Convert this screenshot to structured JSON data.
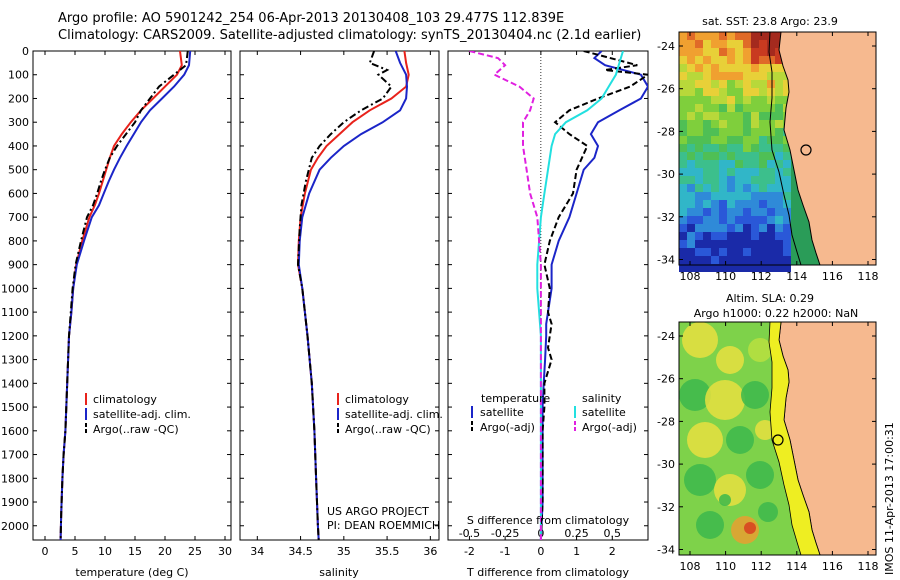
{
  "titles": {
    "line1": "Argo profile: AO 5901242_254 06-Apr-2013 20130408_103 29.477S 112.839E",
    "line2": "Climatology: CARS2009. Satellite-adjusted climatology: synTS_20130404.nc (2.1d earlier)"
  },
  "colors": {
    "climatology": "#e8221b",
    "satellite": "#1b25c8",
    "argo": "#000000",
    "sal_satellite": "#22e0e0",
    "sal_argo": "#e020e0",
    "land": "#f6b98f"
  },
  "chart_data": [
    {
      "type": "line",
      "id": "temperature",
      "xlabel": "temperature (deg C)",
      "xlim": [
        -2,
        31
      ],
      "ylim": [
        0,
        2060
      ],
      "yticks": [
        0,
        100,
        200,
        300,
        400,
        500,
        600,
        700,
        800,
        900,
        1000,
        1100,
        1200,
        1300,
        1400,
        1500,
        1600,
        1700,
        1800,
        1900,
        2000
      ],
      "xticks": [
        0,
        5,
        10,
        15,
        20,
        25,
        30
      ],
      "legend": [
        "climatology",
        "satellite-adj. clim.",
        "Argo(..raw -QC)"
      ],
      "series": [
        {
          "name": "climatology",
          "style": "solid",
          "color_key": "climatology",
          "x": [
            22.5,
            22.8,
            22.0,
            20.0,
            18.0,
            16.0,
            14.3,
            12.8,
            11.5,
            10.8,
            10.2,
            9.6,
            9.0,
            8.3,
            7.4,
            6.2,
            5.2,
            4.7,
            4.4,
            4.0,
            3.7,
            3.4,
            3.1,
            2.9,
            2.7,
            2.6
          ],
          "y": [
            0,
            60,
            100,
            150,
            200,
            250,
            300,
            350,
            400,
            450,
            500,
            550,
            600,
            650,
            700,
            800,
            900,
            1000,
            1100,
            1200,
            1400,
            1600,
            1700,
            1800,
            1950,
            2060
          ]
        },
        {
          "name": "satellite-adj. clim.",
          "style": "solid",
          "color_key": "satellite",
          "x": [
            24.2,
            24.0,
            23.2,
            21.5,
            19.5,
            17.5,
            16.0,
            14.8,
            13.6,
            12.5,
            11.5,
            10.6,
            9.8,
            9.0,
            7.8,
            6.5,
            5.3,
            4.7,
            4.4,
            4.0,
            3.7,
            3.4,
            3.1,
            2.9,
            2.7,
            2.6
          ],
          "y": [
            0,
            60,
            100,
            150,
            200,
            250,
            300,
            350,
            400,
            450,
            500,
            550,
            600,
            650,
            700,
            800,
            900,
            1000,
            1100,
            1200,
            1400,
            1600,
            1700,
            1800,
            1950,
            2060
          ]
        },
        {
          "name": "Argo(..raw -QC)",
          "style": "dashdot",
          "color_key": "argo",
          "x": [
            23.8,
            23.5,
            21.5,
            19.0,
            17.5,
            16.0,
            15.0,
            13.5,
            12.0,
            10.8,
            10.0,
            9.3,
            8.7,
            8.0,
            7.0,
            6.0,
            5.1,
            4.6,
            4.3,
            4.0,
            3.7,
            3.4,
            3.1,
            2.9,
            2.7,
            2.6
          ],
          "y": [
            0,
            60,
            100,
            150,
            200,
            250,
            300,
            350,
            400,
            450,
            500,
            550,
            600,
            650,
            700,
            800,
            900,
            1000,
            1100,
            1200,
            1400,
            1600,
            1700,
            1800,
            1950,
            2060
          ]
        }
      ]
    },
    {
      "type": "line",
      "id": "salinity",
      "xlabel": "salinity",
      "xlim": [
        33.8,
        36.1
      ],
      "ylim": [
        0,
        2060
      ],
      "xticks": [
        34,
        34.5,
        35,
        35.5,
        36
      ],
      "legend": [
        "climatology",
        "satellite-adj. clim.",
        "Argo(..raw -QC)"
      ],
      "annotation": [
        "US ARGO PROJECT",
        "PI: DEAN ROEMMICH"
      ],
      "series": [
        {
          "name": "climatology",
          "style": "solid",
          "color_key": "climatology",
          "x": [
            35.7,
            35.72,
            35.75,
            35.72,
            35.55,
            35.3,
            35.1,
            34.95,
            34.8,
            34.7,
            34.62,
            34.55,
            34.5,
            34.48,
            34.47,
            34.52,
            34.58,
            34.63,
            34.66,
            34.68,
            34.7,
            34.71
          ],
          "y": [
            0,
            50,
            100,
            150,
            200,
            250,
            300,
            350,
            400,
            450,
            500,
            600,
            700,
            800,
            900,
            1000,
            1200,
            1400,
            1600,
            1800,
            2000,
            2060
          ]
        },
        {
          "name": "satellite-adj. clim.",
          "style": "solid",
          "color_key": "satellite",
          "x": [
            35.6,
            35.65,
            35.72,
            35.73,
            35.72,
            35.65,
            35.45,
            35.2,
            35.0,
            34.85,
            34.72,
            34.6,
            34.52,
            34.49,
            34.48,
            34.52,
            34.58,
            34.63,
            34.66,
            34.68,
            34.7,
            34.71
          ],
          "y": [
            0,
            50,
            100,
            150,
            200,
            250,
            300,
            350,
            400,
            450,
            500,
            600,
            700,
            800,
            900,
            1000,
            1200,
            1400,
            1600,
            1800,
            2000,
            2060
          ]
        },
        {
          "name": "Argo(..raw -QC)",
          "style": "dashdot",
          "color_key": "argo",
          "x": [
            35.35,
            35.3,
            35.5,
            35.4,
            35.55,
            35.45,
            35.2,
            35.0,
            34.85,
            34.72,
            34.63,
            34.56,
            34.51,
            34.49,
            34.47,
            34.52,
            34.58,
            34.63,
            34.66,
            34.68,
            34.7,
            34.71
          ],
          "y": [
            0,
            50,
            80,
            100,
            150,
            200,
            250,
            300,
            350,
            400,
            450,
            550,
            650,
            750,
            900,
            1000,
            1200,
            1400,
            1600,
            1800,
            2000,
            2060
          ]
        }
      ]
    },
    {
      "type": "line",
      "id": "differences",
      "xlabel": "T difference from climatology",
      "xlabel_top": "S difference from climatology",
      "xlim": [
        -2.6,
        3.0
      ],
      "xticks_T": [
        -2,
        -1,
        0,
        1,
        2
      ],
      "xticks_S": [
        "-0.5",
        "-0.25",
        "0",
        "0.25",
        "0.5"
      ],
      "xticks_S_pos": [
        -2,
        -1,
        0,
        1,
        2
      ],
      "ylim": [
        0,
        2060
      ],
      "legend_headers": [
        "temperature",
        "salinity"
      ],
      "legend": [
        "satellite",
        "Argo(-adj)",
        "satellite",
        "Argo(-adj)"
      ],
      "series": [
        {
          "name": "satellite",
          "group": "temperature",
          "style": "solid",
          "color_key": "satellite",
          "x": [
            1.7,
            1.5,
            1.8,
            2.8,
            3.0,
            2.8,
            2.2,
            1.6,
            1.4,
            1.6,
            1.5,
            1.2,
            1.0,
            0.8,
            0.5,
            0.3,
            0.3,
            0.2,
            0.15,
            0.15,
            0.12,
            0.08,
            0.05,
            0.05,
            0.05,
            0.0
          ],
          "y": [
            0,
            30,
            60,
            100,
            150,
            200,
            250,
            300,
            350,
            400,
            450,
            500,
            600,
            700,
            800,
            900,
            1000,
            1100,
            1150,
            1200,
            1300,
            1400,
            1500,
            1600,
            1900,
            2060
          ]
        },
        {
          "name": "Argo(-adj)",
          "group": "temperature",
          "style": "dashed",
          "color_key": "argo",
          "x": [
            1.2,
            2.7,
            1.8,
            3.0,
            2.5,
            1.6,
            0.8,
            0.4,
            0.8,
            1.3,
            1.0,
            0.9,
            0.5,
            0.25,
            0.1,
            0.25,
            0.2,
            0.3,
            0.2,
            0.3,
            0.1,
            0.1,
            0.05,
            0.05,
            0.0
          ],
          "y": [
            0,
            60,
            80,
            100,
            150,
            200,
            250,
            300,
            350,
            400,
            500,
            600,
            700,
            800,
            900,
            1000,
            1100,
            1150,
            1250,
            1300,
            1400,
            1500,
            1600,
            1900,
            2060
          ]
        },
        {
          "name": "satellite",
          "group": "salinity",
          "style": "solid",
          "color_key": "sal_satellite",
          "x": [
            2.3,
            2.2,
            2.1,
            1.9,
            1.7,
            1.3,
            0.7,
            0.4,
            0.3,
            0.2,
            0.1,
            0.0,
            -0.1,
            -0.1,
            -0.05,
            0.0,
            0.0,
            0.0,
            0.0
          ],
          "y": [
            0,
            50,
            100,
            150,
            200,
            250,
            300,
            350,
            400,
            500,
            600,
            700,
            900,
            1000,
            1100,
            1200,
            1400,
            1600,
            2060
          ]
        },
        {
          "name": "Argo(-adj)",
          "group": "salinity",
          "style": "dashed",
          "color_key": "sal_argo",
          "x": [
            -2.0,
            -1.2,
            -1.0,
            -1.3,
            -0.6,
            -0.2,
            -0.3,
            -0.5,
            -0.5,
            -0.4,
            -0.3,
            -0.1,
            0.0,
            0.0,
            0.0,
            0.0
          ],
          "y": [
            0,
            30,
            60,
            100,
            150,
            200,
            250,
            300,
            400,
            500,
            600,
            700,
            900,
            1100,
            1400,
            2060
          ]
        }
      ]
    }
  ],
  "maps": {
    "sst": {
      "title": "sat. SST: 23.8  Argo: 23.9",
      "lat_ticks": [
        "-24",
        "-26",
        "-28",
        "-30",
        "-32",
        "-34"
      ],
      "lon_ticks": [
        "108",
        "110",
        "112",
        "114",
        "116",
        "118"
      ]
    },
    "sla": {
      "title1": "Altim. SLA: 0.29",
      "title2": "Argo h1000: 0.22  h2000: NaN",
      "lat_ticks": [
        "-24",
        "-26",
        "-28",
        "-30",
        "-32",
        "-34"
      ],
      "lon_ticks": [
        "108",
        "110",
        "112",
        "114",
        "116",
        "118"
      ]
    },
    "footer": "IMOS 11-Apr-2013 17:00:31"
  }
}
